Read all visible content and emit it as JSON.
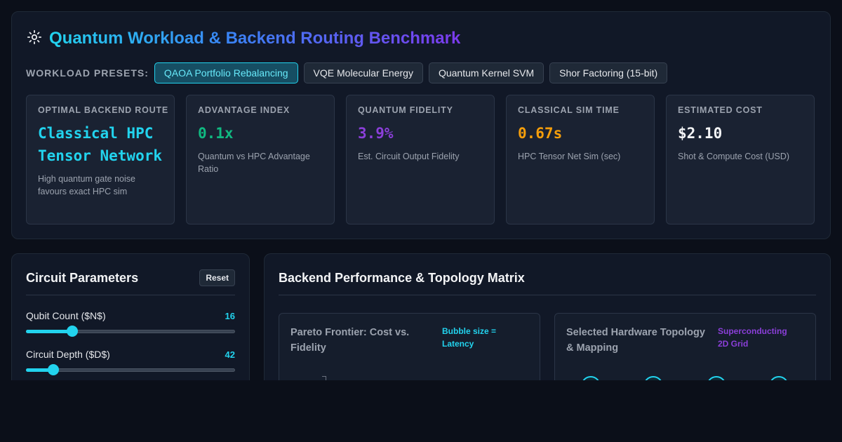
{
  "header": {
    "title": "Quantum Workload & Backend Routing Benchmark",
    "icon": "sun-gear-icon"
  },
  "presets": {
    "label": "WORKLOAD PRESETS:",
    "items": [
      {
        "label": "QAOA Portfolio Rebalancing",
        "active": true
      },
      {
        "label": "VQE Molecular Energy",
        "active": false
      },
      {
        "label": "Quantum Kernel SVM",
        "active": false
      },
      {
        "label": "Shor Factoring (15-bit)",
        "active": false
      }
    ]
  },
  "metrics": [
    {
      "label": "OPTIMAL BACKEND ROUTE",
      "value": "Classical HPC Tensor Network",
      "sub": "High quantum gate noise favours exact HPC sim",
      "color": "#22d3ee"
    },
    {
      "label": "ADVANTAGE INDEX",
      "value": "0.1x",
      "sub": "Quantum vs HPC Advantage Ratio",
      "color": "#10b981"
    },
    {
      "label": "QUANTUM FIDELITY",
      "value": "3.9%",
      "sub": "Est. Circuit Output Fidelity",
      "color": "#8b3fd9"
    },
    {
      "label": "CLASSICAL SIM TIME",
      "value": "0.67s",
      "sub": "HPC Tensor Net Sim (sec)",
      "color": "#f59e0b"
    },
    {
      "label": "ESTIMATED COST",
      "value": "$2.10",
      "sub": "Shot & Compute Cost (USD)",
      "color": "#f3f4f6"
    }
  ],
  "params": {
    "title": "Circuit Parameters",
    "reset_label": "Reset",
    "items": [
      {
        "label": "Qubit Count ($N$)",
        "value": "16",
        "fraction": 0.22
      },
      {
        "label": "Circuit Depth ($D$)",
        "value": "42",
        "fraction": 0.13
      }
    ]
  },
  "matrix": {
    "title": "Backend Performance & Topology Matrix",
    "pareto": {
      "title": "Pareto Frontier: Cost vs. Fidelity",
      "note": "Bubble size = Latency"
    },
    "topology": {
      "title": "Selected Hardware Topology & Mapping",
      "note": "Superconducting 2D Grid"
    }
  }
}
